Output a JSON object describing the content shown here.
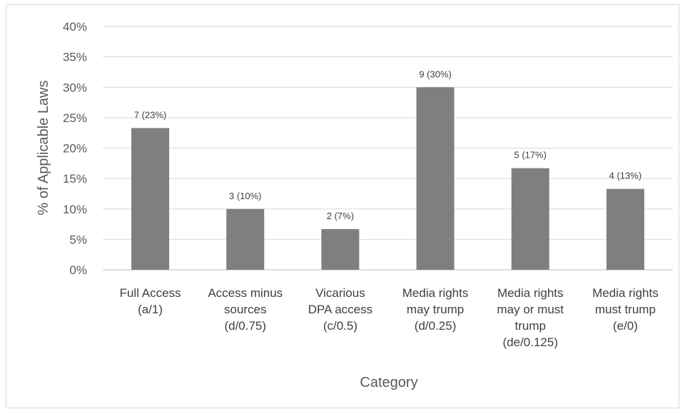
{
  "chart_data": {
    "type": "bar",
    "title": "",
    "xlabel": "Category",
    "ylabel": "% of Applicable Laws",
    "ylim": [
      0,
      40
    ],
    "yticks": [
      "0%",
      "5%",
      "10%",
      "15%",
      "20%",
      "25%",
      "30%",
      "35%",
      "40%"
    ],
    "grid": true,
    "legend": "none",
    "bar_color": "#7f7f7f",
    "categories": [
      [
        "Full Access",
        "(a/1)"
      ],
      [
        "Access minus",
        "sources",
        "(d/0.75)"
      ],
      [
        "Vicarious",
        "DPA access",
        "(c/0.5)"
      ],
      [
        "Media rights",
        "may trump",
        "(d/0.25)"
      ],
      [
        "Media rights",
        "may or must",
        "trump",
        "(de/0.125)"
      ],
      [
        "Media rights",
        "must trump",
        "(e/0)"
      ]
    ],
    "values": [
      23.3,
      10.0,
      6.7,
      30.0,
      16.7,
      13.3
    ],
    "data_labels": [
      "7 (23%)",
      "3 (10%)",
      "2 (7%)",
      "9 (30%)",
      "5 (17%)",
      "4 (13%)"
    ]
  }
}
